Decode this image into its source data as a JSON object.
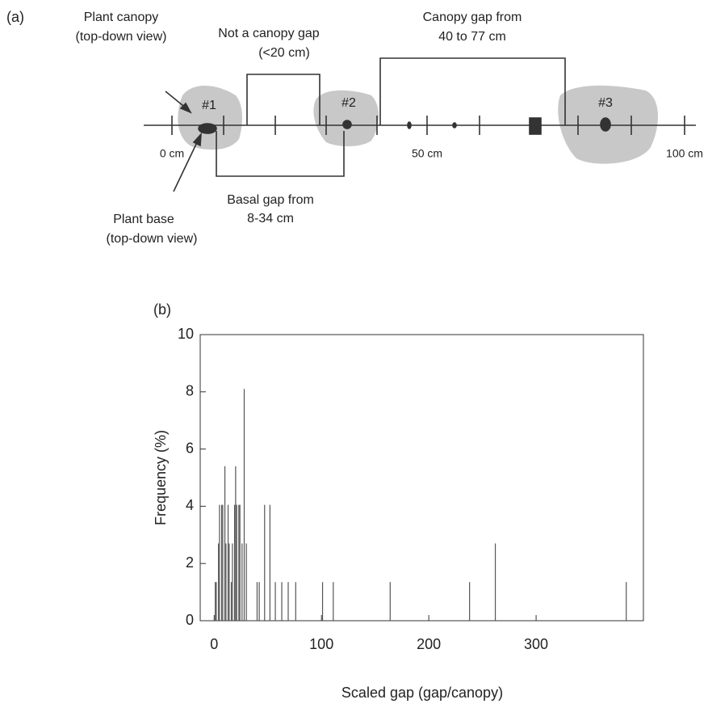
{
  "diagram": {
    "panel_label": "(a)",
    "canopy_label": [
      "Plant canopy",
      "(top-down view)"
    ],
    "not_gap_label": [
      "Not a canopy gap",
      "(<20 cm)"
    ],
    "canopy_gap_label": [
      "Canopy gap from",
      "40 to 77 cm"
    ],
    "plants": [
      "#1",
      "#2",
      "#3"
    ],
    "scale_labels": [
      "0 cm",
      "50 cm",
      "100 cm"
    ],
    "basal_gap_label": [
      "Basal gap from",
      "8-34 cm"
    ],
    "base_label": [
      "Plant base",
      "(top-down view)"
    ]
  },
  "chart_data": {
    "type": "bar",
    "panel_label": "(b)",
    "x_label": "Scaled gap (gap/canopy)",
    "y_label": "Frequency (%)",
    "x": [
      1,
      2,
      4,
      5,
      7,
      8,
      10,
      11,
      13,
      14,
      16,
      17,
      19,
      20,
      21,
      23,
      24,
      26,
      28,
      30,
      40,
      42,
      47,
      52,
      57,
      63,
      69,
      76,
      101,
      111,
      164,
      238,
      262,
      384
    ],
    "values": [
      1.35,
      1.35,
      2.7,
      4.05,
      4.05,
      4.05,
      5.4,
      2.7,
      4.05,
      2.7,
      1.35,
      2.7,
      4.05,
      5.4,
      4.05,
      4.05,
      4.05,
      2.7,
      8.1,
      2.7,
      1.35,
      1.35,
      4.05,
      4.05,
      1.35,
      1.35,
      1.35,
      1.35,
      1.35,
      1.35,
      1.35,
      1.35,
      2.7,
      1.35
    ],
    "color": "#555555",
    "xlim": [
      -13,
      400
    ],
    "ylim": [
      0,
      10
    ],
    "xticks": [
      0,
      100,
      200,
      300
    ],
    "yticks": [
      0,
      2,
      4,
      6,
      8,
      10
    ]
  }
}
